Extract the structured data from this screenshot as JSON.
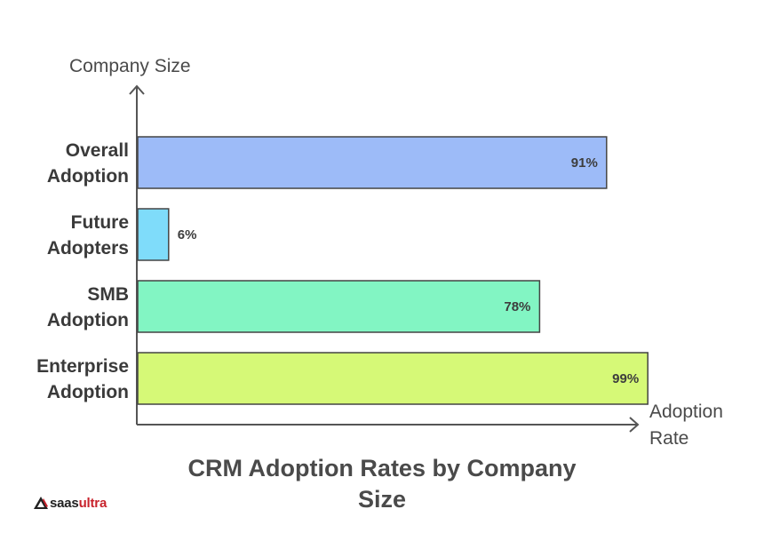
{
  "chart_data": {
    "type": "bar",
    "orientation": "horizontal",
    "categories": [
      "Overall Adoption",
      "Future Adopters",
      "SMB Adoption",
      "Enterprise Adoption"
    ],
    "category_lines": [
      [
        "Overall",
        "Adoption"
      ],
      [
        "Future",
        "Adopters"
      ],
      [
        "SMB",
        "Adoption"
      ],
      [
        "Enterprise",
        "Adoption"
      ]
    ],
    "values": [
      91,
      6,
      78,
      99
    ],
    "value_labels": [
      "91%",
      "6%",
      "78%",
      "99%"
    ],
    "colors": [
      "#9dbbf8",
      "#7fdcfa",
      "#82f5c3",
      "#d6f977"
    ],
    "title": "CRM Adoption Rates by Company Size",
    "title_lines": [
      "CRM Adoption Rates by Company",
      "Size"
    ],
    "ylabel": "Company Size",
    "xlabel_lines": [
      "Adoption",
      "Rate"
    ],
    "xlim": [
      0,
      100
    ],
    "grid": false,
    "legend": "none"
  },
  "logo": {
    "prefix": "saas",
    "accent": "ultra",
    "icon": "saasultra-logo-icon"
  }
}
